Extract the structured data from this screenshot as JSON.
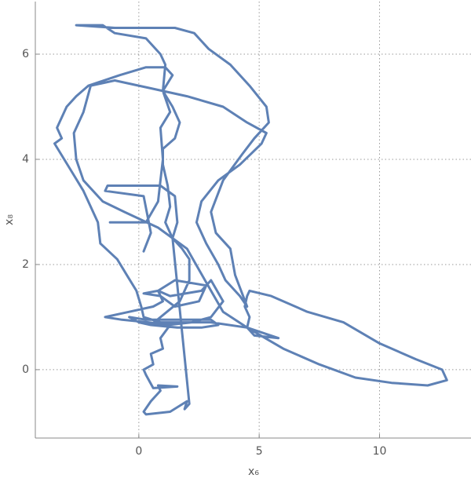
{
  "chart_data": {
    "type": "line",
    "xlabel": "x₆",
    "ylabel": "x₈",
    "color": "#5e81b5",
    "grid": true,
    "xlim": [
      -4.3,
      13.8
    ],
    "ylim": [
      -1.3,
      7.0
    ],
    "xticks": [
      0,
      5,
      10
    ],
    "yticks": [
      0,
      2,
      4,
      6
    ],
    "x": [
      0.2,
      0.5,
      0.2,
      -1.4,
      -1.3,
      0.9,
      1.5,
      1.6,
      1.4,
      2.1,
      1.9,
      2.0,
      1.3,
      0.3,
      0.2,
      0.5,
      0.9,
      0.8,
      1.6,
      0.6,
      0.3,
      0.2,
      0.6,
      0.5,
      1.0,
      0.9,
      1.3,
      0.4,
      -0.7,
      -1.4,
      -0.4,
      0.6,
      1.0,
      0.8,
      1.5,
      2.8,
      2.5,
      1.5,
      0.9,
      0.2,
      0.8,
      1.3,
      2.6,
      3.0,
      3.5,
      3.0,
      2.2,
      1.2,
      0.5,
      0.0,
      -0.4,
      0.3,
      1.5,
      3.0,
      3.3,
      2.6,
      1.6,
      0.5,
      1.7,
      2.1,
      2.1,
      1.8,
      1.4,
      1.1,
      1.3,
      1.2,
      1.0,
      1.0,
      1.5,
      1.7,
      1.4,
      1.0,
      1.4,
      1.1,
      0.3,
      -0.8,
      -2.1,
      -2.6,
      -3.0,
      -3.4,
      -3.2,
      -3.5,
      -3.1,
      -2.7,
      -2.3,
      -1.7,
      -1.6,
      -0.9,
      -0.5,
      -0.1,
      0.1,
      0.2,
      0.9,
      1.8,
      3.0,
      4.5,
      5.8,
      4.8,
      4.5,
      4.6,
      4.4,
      4.5,
      4.6,
      5.5,
      7.0,
      8.5,
      10.0,
      11.5,
      12.6,
      12.8,
      12.0,
      10.5,
      9.0,
      7.5,
      6.0,
      4.5,
      3.5,
      3.0,
      2.5,
      2.0,
      0.8,
      -0.6,
      -1.5,
      -2.3,
      -2.6,
      -2.7,
      -2.3,
      -2.0,
      -1.0,
      0.5,
      2.0,
      3.5,
      4.5,
      5.3,
      5.1,
      4.2,
      3.3,
      2.6,
      2.4,
      2.8,
      3.3,
      3.6,
      4.2,
      4.5,
      4.0,
      3.8,
      3.2,
      3.0,
      3.5,
      4.3,
      4.8,
      5.4,
      5.3,
      4.6,
      3.8,
      2.9,
      2.3,
      1.5,
      0.6,
      -1.0,
      -2.6,
      -1.5,
      -1.0,
      0.3,
      0.9,
      1.1,
      1.0,
      1.3,
      0.9,
      1.0,
      0.9,
      0.8,
      0.3,
      -1.2
    ],
    "values": [
      2.25,
      2.6,
      3.3,
      3.4,
      3.5,
      3.5,
      3.3,
      2.8,
      2.5,
      -0.65,
      -0.75,
      -0.6,
      -0.8,
      -0.85,
      -0.8,
      -0.6,
      -0.4,
      -0.3,
      -0.32,
      -0.35,
      -0.1,
      0.0,
      0.1,
      0.3,
      0.4,
      0.6,
      0.85,
      0.9,
      0.95,
      1.0,
      1.1,
      1.2,
      1.3,
      1.5,
      1.7,
      1.6,
      1.3,
      1.2,
      1.4,
      1.45,
      1.5,
      1.4,
      1.5,
      1.7,
      1.3,
      1.0,
      0.9,
      0.85,
      0.85,
      0.9,
      1.0,
      0.95,
      0.95,
      0.95,
      0.85,
      0.8,
      0.8,
      0.85,
      1.3,
      1.7,
      2.1,
      2.3,
      2.5,
      2.8,
      3.1,
      3.5,
      3.9,
      4.2,
      4.4,
      4.7,
      5.0,
      5.3,
      5.6,
      5.75,
      5.75,
      5.6,
      5.4,
      5.2,
      5.0,
      4.6,
      4.4,
      4.3,
      4.0,
      3.7,
      3.4,
      2.8,
      2.4,
      2.1,
      1.8,
      1.5,
      1.2,
      1.0,
      0.9,
      0.9,
      0.9,
      0.8,
      0.6,
      0.65,
      0.8,
      1.0,
      1.2,
      1.4,
      1.5,
      1.4,
      1.1,
      0.9,
      0.5,
      0.2,
      0.0,
      -0.2,
      -0.3,
      -0.25,
      -0.15,
      0.1,
      0.4,
      0.8,
      1.1,
      1.5,
      1.9,
      2.3,
      2.7,
      3.0,
      3.2,
      3.6,
      4.0,
      4.5,
      4.9,
      5.4,
      5.5,
      5.35,
      5.2,
      5.0,
      4.7,
      4.5,
      4.3,
      3.9,
      3.6,
      3.2,
      2.8,
      2.4,
      2.0,
      1.7,
      1.4,
      1.2,
      1.8,
      2.3,
      2.6,
      3.0,
      3.6,
      4.1,
      4.4,
      4.7,
      5.0,
      5.4,
      5.8,
      6.1,
      6.4,
      6.5,
      6.5,
      6.5,
      6.55,
      6.55,
      6.4,
      6.3,
      6.0,
      5.8,
      5.3,
      4.9,
      4.6,
      4.0,
      3.6,
      3.2,
      2.8,
      2.8
    ]
  }
}
